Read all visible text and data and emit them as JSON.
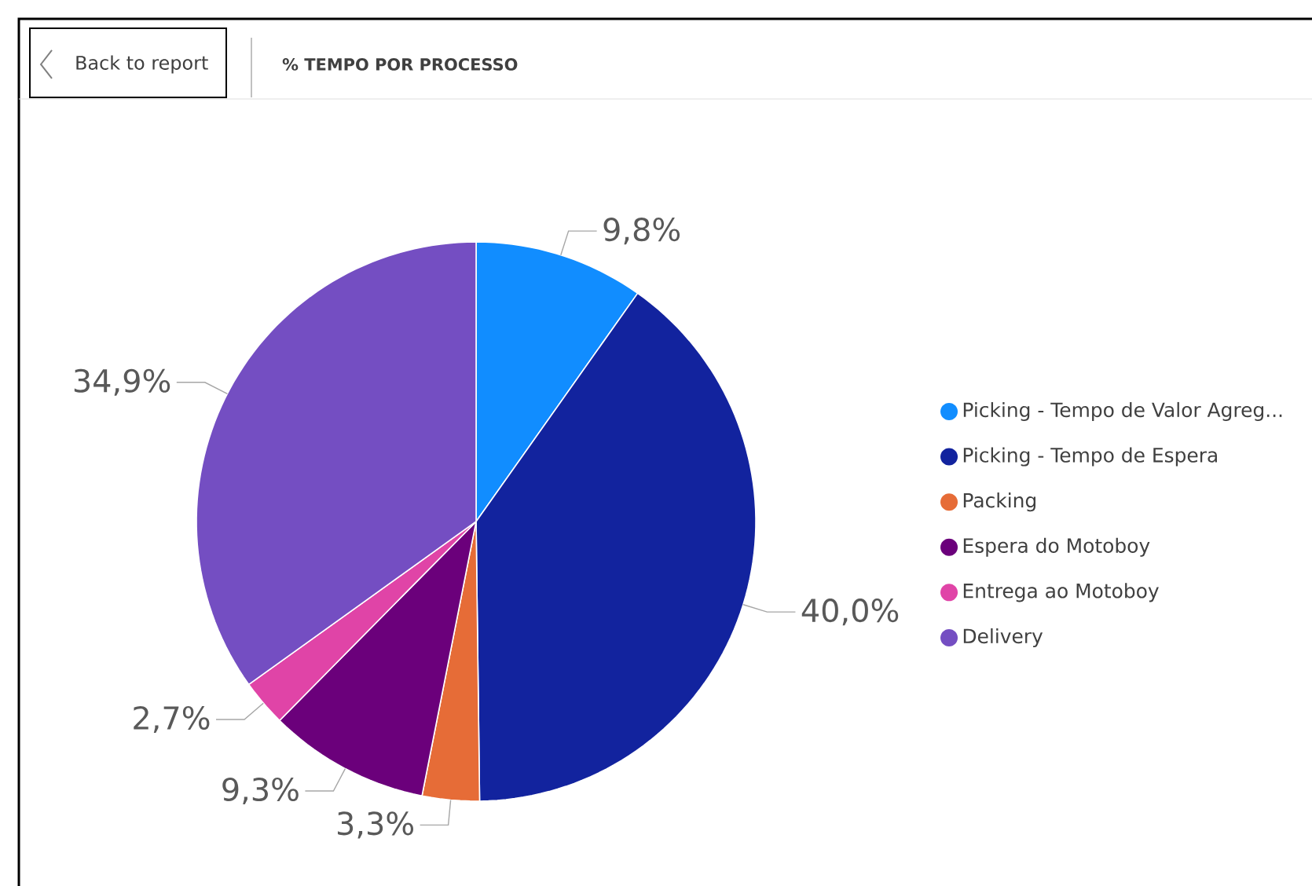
{
  "chart_data": {
    "type": "pie",
    "title": "% TEMPO POR PROCESSO",
    "annotations": [
      "Back to report"
    ],
    "categories": [
      "Picking  - Tempo de Valor Agreg...",
      "Picking - Tempo de Espera",
      "Packing",
      "Espera do Motoboy",
      "Entrega ao Motoboy",
      "Delivery"
    ],
    "values": [
      9.8,
      40.0,
      3.3,
      9.3,
      2.7,
      34.9
    ],
    "value_labels": [
      "9,8%",
      "40,0%",
      "3,3%",
      "9,3%",
      "2,7%",
      "34,9%"
    ],
    "colors": [
      "#118dff",
      "#12239e",
      "#e66c37",
      "#6b007b",
      "#e044a7",
      "#744ec2"
    ],
    "legend": "right"
  }
}
